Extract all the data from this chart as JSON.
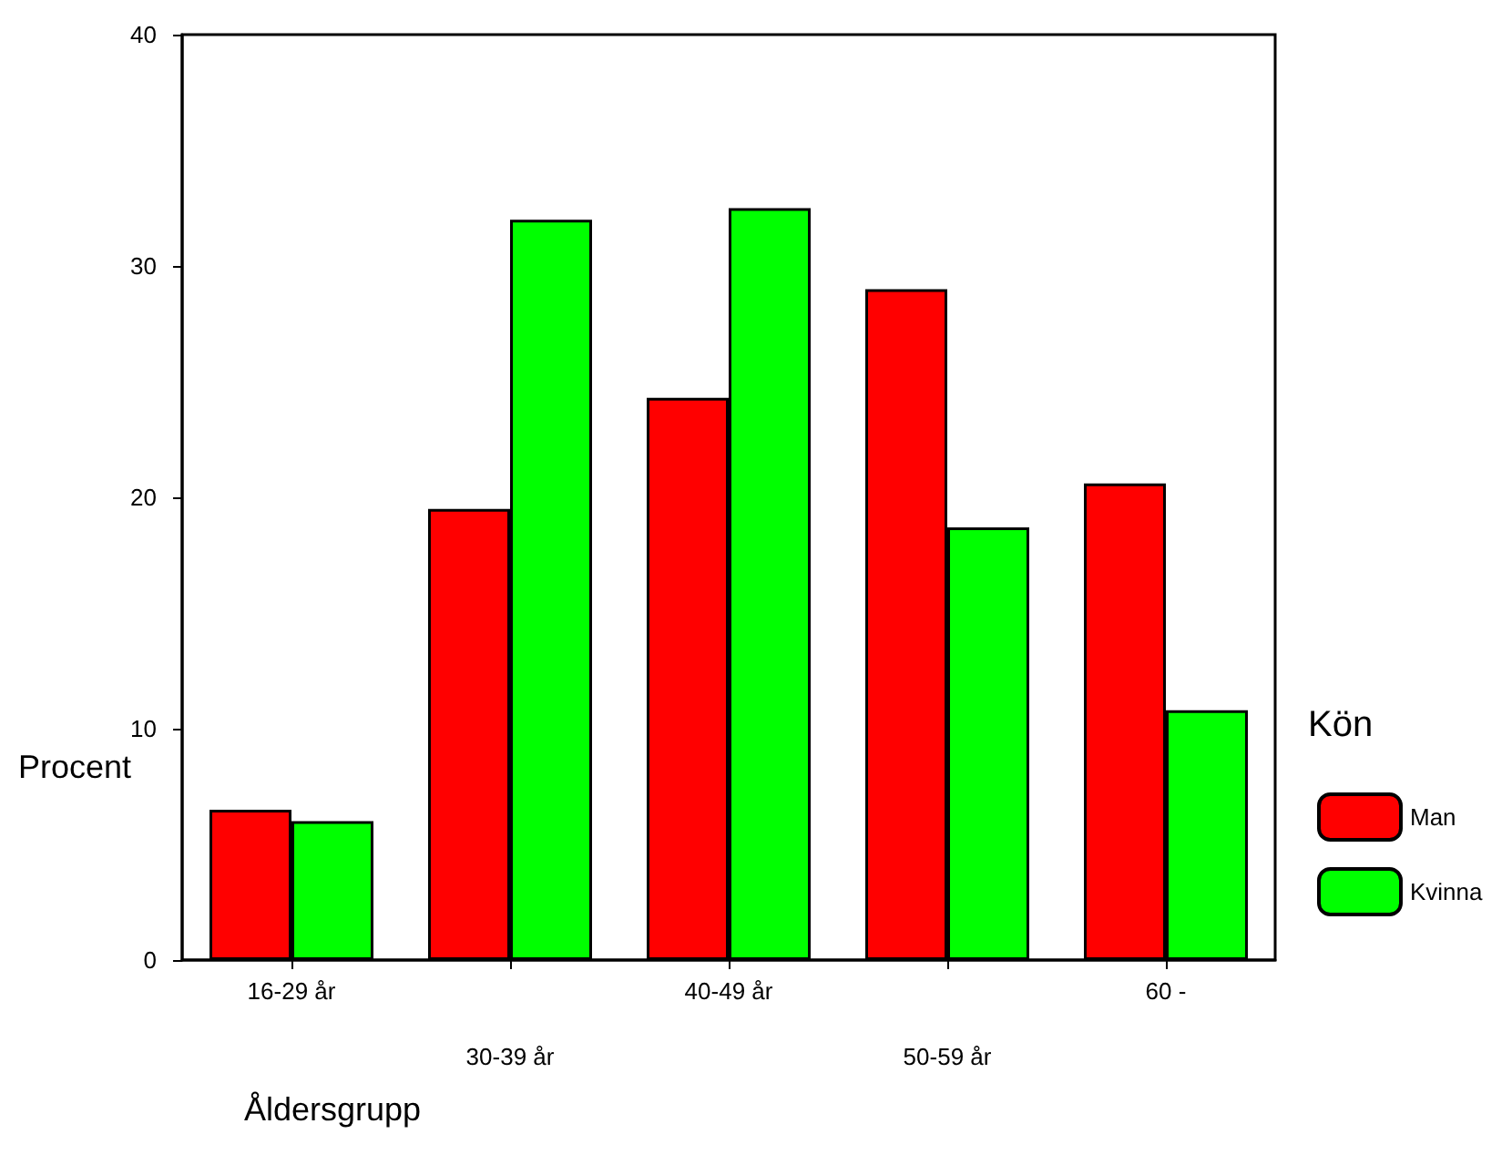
{
  "chart_data": {
    "type": "bar",
    "xlabel": "Åldersgrupp",
    "ylabel": "Procent",
    "legend_title": "Kön",
    "categories": [
      "16-29 år",
      "30-39 år",
      "40-49 år",
      "50-59 år",
      "60 -"
    ],
    "series": [
      {
        "name": "Man",
        "color": "#ff0000",
        "values": [
          6.5,
          19.5,
          24.3,
          29.0,
          20.6
        ]
      },
      {
        "name": "Kvinna",
        "color": "#00ff00",
        "values": [
          6.0,
          32.0,
          32.5,
          18.7,
          10.8
        ]
      }
    ],
    "ylim": [
      0,
      40
    ],
    "yticks": [
      0,
      10,
      20,
      30,
      40
    ],
    "grid": false,
    "legend": "right"
  }
}
